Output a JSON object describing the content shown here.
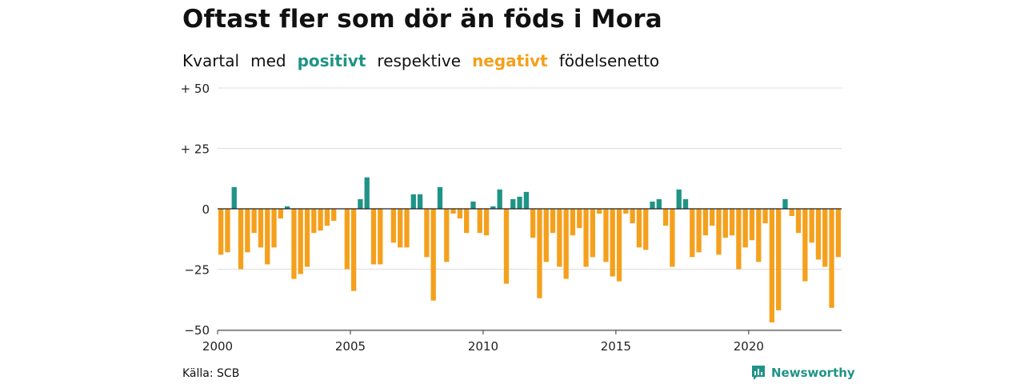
{
  "header": {
    "title": "Oftast fler som dör än föds i Mora",
    "subtitle": {
      "part1": "Kvartal",
      "part2": "med",
      "positive_word": "positivt",
      "part3": "respektive",
      "negative_word": "negativt",
      "part4": "födelsenetto"
    }
  },
  "colors": {
    "positive": "#1f9486",
    "negative": "#f5a01c",
    "grid": "#dddddd",
    "zero": "#222222"
  },
  "footer": {
    "source": "Källa: SCB",
    "brand": "Newsworthy"
  },
  "chart_data": {
    "type": "bar",
    "ylim": [
      -50,
      50
    ],
    "xlim": [
      2000,
      2023.5
    ],
    "yticks": [
      50,
      25,
      0,
      -25,
      -50
    ],
    "ytick_labels": [
      "+ 50",
      "+ 25",
      "0",
      "−25",
      "−50"
    ],
    "xticks": [
      2000,
      2005,
      2010,
      2015,
      2020
    ],
    "xtick_labels": [
      "2000",
      "2005",
      "2010",
      "2015",
      "2020"
    ],
    "grid": true,
    "legend": "in subtitle",
    "categories": [
      "2000 Q1",
      "2000 Q2",
      "2000 Q3",
      "2000 Q4",
      "2001 Q1",
      "2001 Q2",
      "2001 Q3",
      "2001 Q4",
      "2002 Q1",
      "2002 Q2",
      "2002 Q3",
      "2002 Q4",
      "2003 Q1",
      "2003 Q2",
      "2003 Q3",
      "2003 Q4",
      "2004 Q1",
      "2004 Q2",
      "2004 Q3",
      "2004 Q4",
      "2005 Q1",
      "2005 Q2",
      "2005 Q3",
      "2005 Q4",
      "2006 Q1",
      "2006 Q2",
      "2006 Q3",
      "2006 Q4",
      "2007 Q1",
      "2007 Q2",
      "2007 Q3",
      "2007 Q4",
      "2008 Q1",
      "2008 Q2",
      "2008 Q3",
      "2008 Q4",
      "2009 Q1",
      "2009 Q2",
      "2009 Q3",
      "2009 Q4",
      "2010 Q1",
      "2010 Q2",
      "2010 Q3",
      "2010 Q4",
      "2011 Q1",
      "2011 Q2",
      "2011 Q3",
      "2011 Q4",
      "2012 Q1",
      "2012 Q2",
      "2012 Q3",
      "2012 Q4",
      "2013 Q1",
      "2013 Q2",
      "2013 Q3",
      "2013 Q4",
      "2014 Q1",
      "2014 Q2",
      "2014 Q3",
      "2014 Q4",
      "2015 Q1",
      "2015 Q2",
      "2015 Q3",
      "2015 Q4",
      "2016 Q1",
      "2016 Q2",
      "2016 Q3",
      "2016 Q4",
      "2017 Q1",
      "2017 Q2",
      "2017 Q3",
      "2017 Q4",
      "2018 Q1",
      "2018 Q2",
      "2018 Q3",
      "2018 Q4",
      "2019 Q1",
      "2019 Q2",
      "2019 Q3",
      "2019 Q4",
      "2020 Q1",
      "2020 Q2",
      "2020 Q3",
      "2020 Q4",
      "2021 Q1",
      "2021 Q2",
      "2021 Q3",
      "2021 Q4",
      "2022 Q1",
      "2022 Q2",
      "2022 Q3",
      "2022 Q4",
      "2023 Q1",
      "2023 Q2"
    ],
    "values": [
      -19,
      -18,
      9,
      -25,
      -18,
      -10,
      -16,
      -23,
      -16,
      -4,
      1,
      -29,
      -27,
      -24,
      -10,
      -9,
      -7,
      -5,
      0,
      -25,
      -34,
      4,
      13,
      -23,
      -23,
      0,
      -14,
      -16,
      -16,
      6,
      6,
      -20,
      -38,
      9,
      -22,
      -2,
      -4,
      -10,
      3,
      -10,
      -11,
      1,
      8,
      -31,
      4,
      5,
      7,
      -12,
      -37,
      -22,
      -10,
      -24,
      -29,
      -11,
      -8,
      -24,
      -20,
      -2,
      -22,
      -28,
      -30,
      -2,
      -6,
      -16,
      -17,
      3,
      4,
      -7,
      -24,
      8,
      4,
      -20,
      -18,
      -11,
      -7,
      -19,
      -12,
      -11,
      -25,
      -16,
      -13,
      -22,
      -6,
      -47,
      -42,
      4,
      -3,
      -10,
      -30,
      -14,
      -21,
      -24,
      -41,
      -20
    ]
  }
}
